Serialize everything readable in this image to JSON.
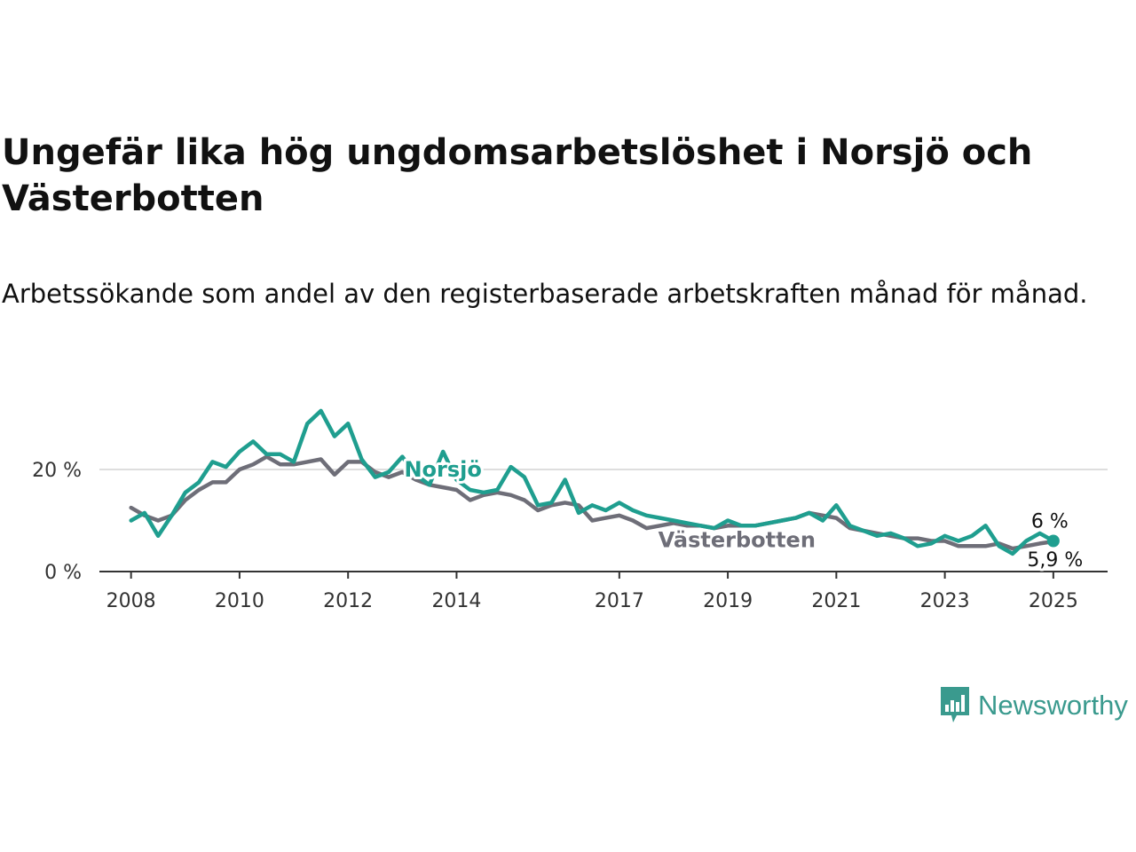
{
  "header": {
    "title": "Ungefär lika hög ungdomsarbetslöshet i Norsjö och Västerbotten",
    "subtitle": "Arbetssökande som andel av den registerbaserade arbetskraften månad för månad."
  },
  "brand": {
    "name": "Newsworthy",
    "icon": "newsworthy-chart-icon",
    "color": "#3a9a8e"
  },
  "chart_data": {
    "type": "line",
    "title": "Ungefär lika hög ungdomsarbetslöshet i Norsjö och Västerbotten",
    "subtitle": "Arbetssökande som andel av den registerbaserade arbetskraften månad för månad.",
    "xlabel": "",
    "ylabel": "",
    "x_type": "date",
    "xlim": [
      "2007-06",
      "2026-01"
    ],
    "ylim": [
      0,
      32
    ],
    "y_ticks": [
      0,
      20
    ],
    "y_tick_labels": [
      "0 %",
      "20 %"
    ],
    "x_ticks": [
      "2008-01",
      "2010-01",
      "2012-01",
      "2014-01",
      "2017-01",
      "2019-01",
      "2021-01",
      "2023-01",
      "2025-01"
    ],
    "x_tick_labels": [
      "2008",
      "2010",
      "2012",
      "2014",
      "2017",
      "2019",
      "2021",
      "2023",
      "2025"
    ],
    "grid": "horizontal",
    "legend": "inline labels",
    "series": [
      {
        "name": "Västerbotten",
        "color": "#6e6e78",
        "end_label": "5,9 %",
        "points": [
          [
            "2008-01",
            12.5
          ],
          [
            "2008-04",
            11.0
          ],
          [
            "2008-07",
            10.0
          ],
          [
            "2008-10",
            11.0
          ],
          [
            "2009-01",
            14.0
          ],
          [
            "2009-04",
            16.0
          ],
          [
            "2009-07",
            17.5
          ],
          [
            "2009-10",
            17.5
          ],
          [
            "2010-01",
            20.0
          ],
          [
            "2010-04",
            21.0
          ],
          [
            "2010-07",
            22.5
          ],
          [
            "2010-10",
            21.0
          ],
          [
            "2011-01",
            21.0
          ],
          [
            "2011-04",
            21.5
          ],
          [
            "2011-07",
            22.0
          ],
          [
            "2011-10",
            19.0
          ],
          [
            "2012-01",
            21.5
          ],
          [
            "2012-04",
            21.5
          ],
          [
            "2012-07",
            19.5
          ],
          [
            "2012-10",
            18.5
          ],
          [
            "2013-01",
            19.5
          ],
          [
            "2013-04",
            18.0
          ],
          [
            "2013-07",
            17.0
          ],
          [
            "2013-10",
            16.5
          ],
          [
            "2014-01",
            16.0
          ],
          [
            "2014-04",
            14.0
          ],
          [
            "2014-07",
            15.0
          ],
          [
            "2014-10",
            15.5
          ],
          [
            "2015-01",
            15.0
          ],
          [
            "2015-04",
            14.0
          ],
          [
            "2015-07",
            12.0
          ],
          [
            "2015-10",
            13.0
          ],
          [
            "2016-01",
            13.5
          ],
          [
            "2016-04",
            13.0
          ],
          [
            "2016-07",
            10.0
          ],
          [
            "2016-10",
            10.5
          ],
          [
            "2017-01",
            11.0
          ],
          [
            "2017-04",
            10.0
          ],
          [
            "2017-07",
            8.5
          ],
          [
            "2017-10",
            9.0
          ],
          [
            "2018-01",
            9.5
          ],
          [
            "2018-04",
            9.0
          ],
          [
            "2018-07",
            9.0
          ],
          [
            "2018-10",
            8.5
          ],
          [
            "2019-01",
            9.0
          ],
          [
            "2019-04",
            9.0
          ],
          [
            "2019-07",
            9.0
          ],
          [
            "2019-10",
            9.5
          ],
          [
            "2020-01",
            10.0
          ],
          [
            "2020-04",
            10.5
          ],
          [
            "2020-07",
            11.5
          ],
          [
            "2020-10",
            11.0
          ],
          [
            "2021-01",
            10.5
          ],
          [
            "2021-04",
            8.5
          ],
          [
            "2021-07",
            8.0
          ],
          [
            "2021-10",
            7.5
          ],
          [
            "2022-01",
            7.0
          ],
          [
            "2022-04",
            6.5
          ],
          [
            "2022-07",
            6.5
          ],
          [
            "2022-10",
            6.0
          ],
          [
            "2023-01",
            6.0
          ],
          [
            "2023-04",
            5.0
          ],
          [
            "2023-07",
            5.0
          ],
          [
            "2023-10",
            5.0
          ],
          [
            "2024-01",
            5.5
          ],
          [
            "2024-04",
            4.5
          ],
          [
            "2024-07",
            5.0
          ],
          [
            "2024-10",
            5.5
          ],
          [
            "2025-01",
            5.9
          ]
        ]
      },
      {
        "name": "Norsjö",
        "color": "#1f9e8f",
        "end_label": "6 %",
        "points": [
          [
            "2008-01",
            10.0
          ],
          [
            "2008-04",
            11.5
          ],
          [
            "2008-07",
            7.0
          ],
          [
            "2008-10",
            11.0
          ],
          [
            "2009-01",
            15.5
          ],
          [
            "2009-04",
            17.5
          ],
          [
            "2009-07",
            21.5
          ],
          [
            "2009-10",
            20.5
          ],
          [
            "2010-01",
            23.5
          ],
          [
            "2010-04",
            25.5
          ],
          [
            "2010-07",
            23.0
          ],
          [
            "2010-10",
            23.0
          ],
          [
            "2011-01",
            21.5
          ],
          [
            "2011-04",
            29.0
          ],
          [
            "2011-07",
            31.5
          ],
          [
            "2011-10",
            26.5
          ],
          [
            "2012-01",
            29.0
          ],
          [
            "2012-04",
            22.0
          ],
          [
            "2012-07",
            18.5
          ],
          [
            "2012-10",
            19.5
          ],
          [
            "2013-01",
            22.5
          ],
          [
            "2013-04",
            19.0
          ],
          [
            "2013-07",
            17.0
          ],
          [
            "2013-10",
            23.5
          ],
          [
            "2014-01",
            18.0
          ],
          [
            "2014-04",
            16.0
          ],
          [
            "2014-07",
            15.5
          ],
          [
            "2014-10",
            16.0
          ],
          [
            "2015-01",
            20.5
          ],
          [
            "2015-04",
            18.5
          ],
          [
            "2015-07",
            13.0
          ],
          [
            "2015-10",
            13.5
          ],
          [
            "2016-01",
            18.0
          ],
          [
            "2016-04",
            11.5
          ],
          [
            "2016-07",
            13.0
          ],
          [
            "2016-10",
            12.0
          ],
          [
            "2017-01",
            13.5
          ],
          [
            "2017-04",
            12.0
          ],
          [
            "2017-07",
            11.0
          ],
          [
            "2017-10",
            10.5
          ],
          [
            "2018-01",
            10.0
          ],
          [
            "2018-04",
            9.5
          ],
          [
            "2018-07",
            9.0
          ],
          [
            "2018-10",
            8.5
          ],
          [
            "2019-01",
            10.0
          ],
          [
            "2019-04",
            9.0
          ],
          [
            "2019-07",
            9.0
          ],
          [
            "2019-10",
            9.5
          ],
          [
            "2020-01",
            10.0
          ],
          [
            "2020-04",
            10.5
          ],
          [
            "2020-07",
            11.5
          ],
          [
            "2020-10",
            10.0
          ],
          [
            "2021-01",
            13.0
          ],
          [
            "2021-04",
            9.0
          ],
          [
            "2021-07",
            8.0
          ],
          [
            "2021-10",
            7.0
          ],
          [
            "2022-01",
            7.5
          ],
          [
            "2022-04",
            6.5
          ],
          [
            "2022-07",
            5.0
          ],
          [
            "2022-10",
            5.5
          ],
          [
            "2023-01",
            7.0
          ],
          [
            "2023-04",
            6.0
          ],
          [
            "2023-07",
            7.0
          ],
          [
            "2023-10",
            9.0
          ],
          [
            "2024-01",
            5.0
          ],
          [
            "2024-04",
            3.5
          ],
          [
            "2024-07",
            6.0
          ],
          [
            "2024-10",
            7.5
          ],
          [
            "2025-01",
            6.0
          ]
        ]
      }
    ]
  }
}
